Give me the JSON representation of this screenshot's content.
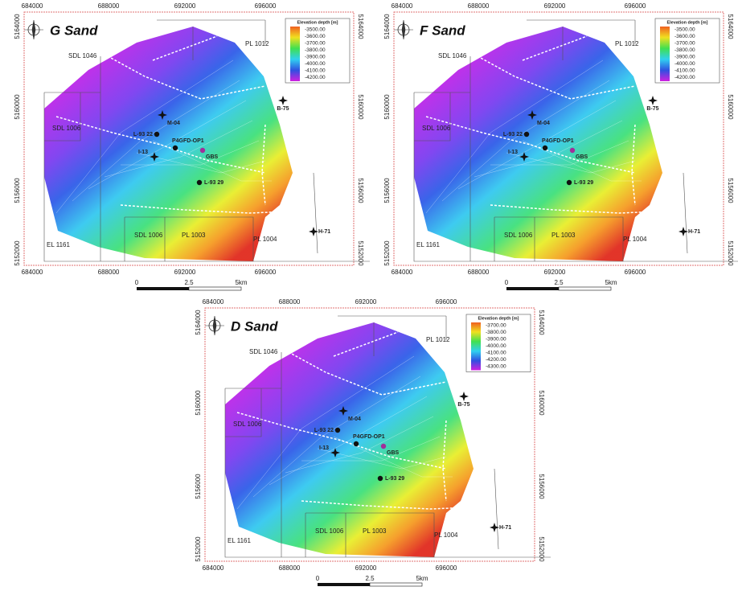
{
  "panels": [
    {
      "title": "G Sand",
      "legend": {
        "title": "Elevation depth [m]",
        "labels": [
          "-3500.00",
          "-3600.00",
          "-3700.00",
          "-3800.00",
          "-3900.00",
          "-4000.00",
          "-4100.00",
          "-4200.00"
        ]
      },
      "x_ticks": [
        "684000",
        "688000",
        "692000",
        "696000"
      ],
      "y_ticks": [
        "5164000",
        "5160000",
        "5156000",
        "5152000"
      ],
      "blocks": [
        "SDL 1046",
        "PL 1012",
        "SDL 1006",
        "EL 1161",
        "SDL 1006",
        "PL 1003",
        "PL 1004"
      ],
      "wells": [
        "B-75",
        "M-04",
        "L-93 22",
        "P4GFD-OP1",
        "GBS",
        "I-13",
        "L-93 29",
        "H-71"
      ],
      "scale": [
        "0",
        "2.5",
        "5km"
      ]
    },
    {
      "title": "F Sand",
      "legend": {
        "title": "Elevation depth [m]",
        "labels": [
          "-3500.00",
          "-3600.00",
          "-3700.00",
          "-3800.00",
          "-3900.00",
          "-4000.00",
          "-4100.00",
          "-4200.00"
        ]
      },
      "x_ticks": [
        "684000",
        "688000",
        "692000",
        "696000"
      ],
      "y_ticks": [
        "5164000",
        "5160000",
        "5156000",
        "5152000"
      ],
      "blocks": [
        "SDL 1046",
        "PL 1012",
        "SDL 1006",
        "EL 1161",
        "SDL 1006",
        "PL 1003",
        "PL 1004"
      ],
      "wells": [
        "B-75",
        "M-04",
        "L-93 22",
        "P4GFD-OP1",
        "GBS",
        "I-13",
        "L-93 29",
        "H-71"
      ],
      "scale": [
        "0",
        "2.5",
        "5km"
      ]
    },
    {
      "title": "D Sand",
      "legend": {
        "title": "Elevation depth [m]",
        "labels": [
          "-3700.00",
          "-3800.00",
          "-3900.00",
          "-4000.00",
          "-4100.00",
          "-4200.00",
          "-4300.00"
        ]
      },
      "x_ticks": [
        "684000",
        "688000",
        "692000",
        "696000"
      ],
      "y_ticks": [
        "5164000",
        "5160000",
        "5156000",
        "5152000"
      ],
      "blocks": [
        "SDL 1046",
        "PL 1012",
        "SDL 1006",
        "EL 1161",
        "SDL 1006",
        "PL 1003",
        "PL 1004"
      ],
      "wells": [
        "B-75",
        "M-04",
        "L-93 22",
        "P4GFD-OP1",
        "GBS",
        "I-13",
        "L-93 29",
        "H-71"
      ],
      "scale": [
        "0",
        "2.5",
        "5km"
      ]
    }
  ]
}
